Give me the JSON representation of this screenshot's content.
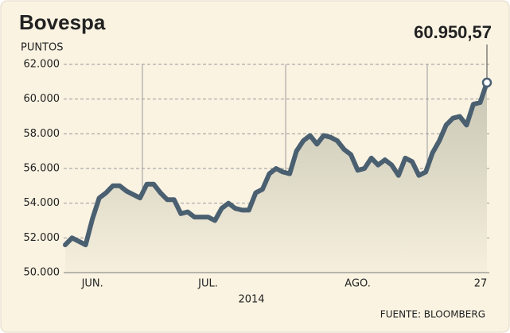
{
  "chart_data": {
    "type": "line",
    "title": "Bovespa",
    "y_label": "PUNTOS",
    "x_label": "2014",
    "source": "FUENTE: BLOOMBERG",
    "annotation": "60.950,57",
    "categories": [
      null,
      null,
      null,
      null,
      "JUN.",
      null,
      null,
      null,
      null,
      null,
      null,
      null,
      null,
      null,
      null,
      null,
      null,
      null,
      null,
      null,
      null,
      "JUL.",
      null,
      null,
      null,
      null,
      null,
      null,
      null,
      null,
      null,
      null,
      null,
      null,
      null,
      null,
      null,
      null,
      null,
      null,
      null,
      null,
      null,
      "AGO.",
      null,
      null,
      null,
      null,
      null,
      null,
      null,
      null,
      null,
      null,
      null,
      null,
      null,
      null,
      null,
      null,
      null,
      null,
      "27"
    ],
    "series": [
      {
        "name": "Bovespa",
        "color": "#4a6071",
        "values": [
          51600,
          52000,
          51800,
          51600,
          53100,
          54300,
          54600,
          55000,
          55000,
          54700,
          54500,
          54300,
          55100,
          55100,
          54600,
          54200,
          54200,
          53400,
          53500,
          53200,
          53200,
          53200,
          53000,
          53700,
          54000,
          53700,
          53600,
          53600,
          54600,
          54800,
          55700,
          56000,
          55800,
          55700,
          57000,
          57600,
          57900,
          57400,
          57900,
          57800,
          57600,
          57100,
          56800,
          55900,
          56000,
          56600,
          56200,
          56500,
          56200,
          55600,
          56600,
          56400,
          55600,
          55800,
          56900,
          57600,
          58500,
          58900,
          59000,
          58500,
          59700,
          59800,
          60950.57
        ]
      }
    ],
    "ylim": [
      50000,
      62000
    ],
    "yticks": [
      {
        "value": 50000,
        "label": "50.000"
      },
      {
        "value": 52000,
        "label": "52.000"
      },
      {
        "value": 54000,
        "label": "54.000"
      },
      {
        "value": 56000,
        "label": "56.000"
      },
      {
        "value": 58000,
        "label": "58.000"
      },
      {
        "value": 60000,
        "label": "60.000"
      },
      {
        "value": 62000,
        "label": "62.000"
      }
    ],
    "grid": true
  }
}
